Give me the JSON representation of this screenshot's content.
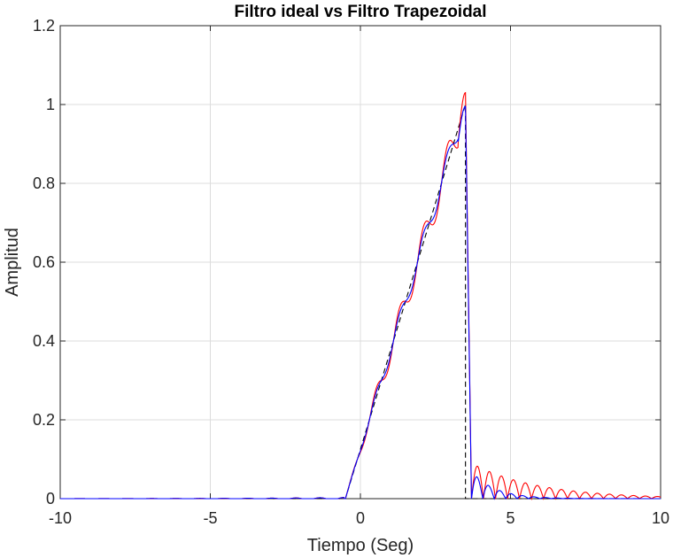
{
  "chart_data": {
    "type": "line",
    "title": "Filtro ideal vs Filtro Trapezoidal",
    "xlabel": "Tiempo (Seg)",
    "ylabel": "Amplitud",
    "xlim": [
      -10,
      10
    ],
    "ylim": [
      0,
      1.2
    ],
    "xticks": [
      -10,
      -5,
      0,
      5,
      10
    ],
    "xtick_labels": [
      "-10",
      "-5",
      "0",
      "5",
      "10"
    ],
    "yticks": [
      0,
      0.2,
      0.4,
      0.6,
      0.8,
      1,
      1.2
    ],
    "ytick_labels": [
      "0",
      "0.2",
      "0.4",
      "0.6",
      "0.8",
      "1",
      "1.2"
    ],
    "grid": true,
    "box": true,
    "series": [
      {
        "color": "#000000",
        "style": "dashed",
        "kind": "ideal-ramp",
        "x": [
          -10,
          -0.5,
          3.5,
          3.5,
          10
        ],
        "y": [
          0,
          0,
          1.0,
          0,
          0
        ]
      },
      {
        "color": "#ff0000",
        "style": "solid",
        "kind": "trapezoidal-red",
        "ripple": 0.035,
        "overshoot": 1.03,
        "tail_amp": 0.09,
        "tail_decay": 0.45,
        "tail_period": 0.4
      },
      {
        "color": "#0000ff",
        "style": "solid",
        "kind": "trapezoidal-blue",
        "ripple": 0.02,
        "overshoot": 0.995,
        "tail_amp": 0.07,
        "tail_decay": 1.3,
        "tail_period": 0.38
      }
    ]
  }
}
